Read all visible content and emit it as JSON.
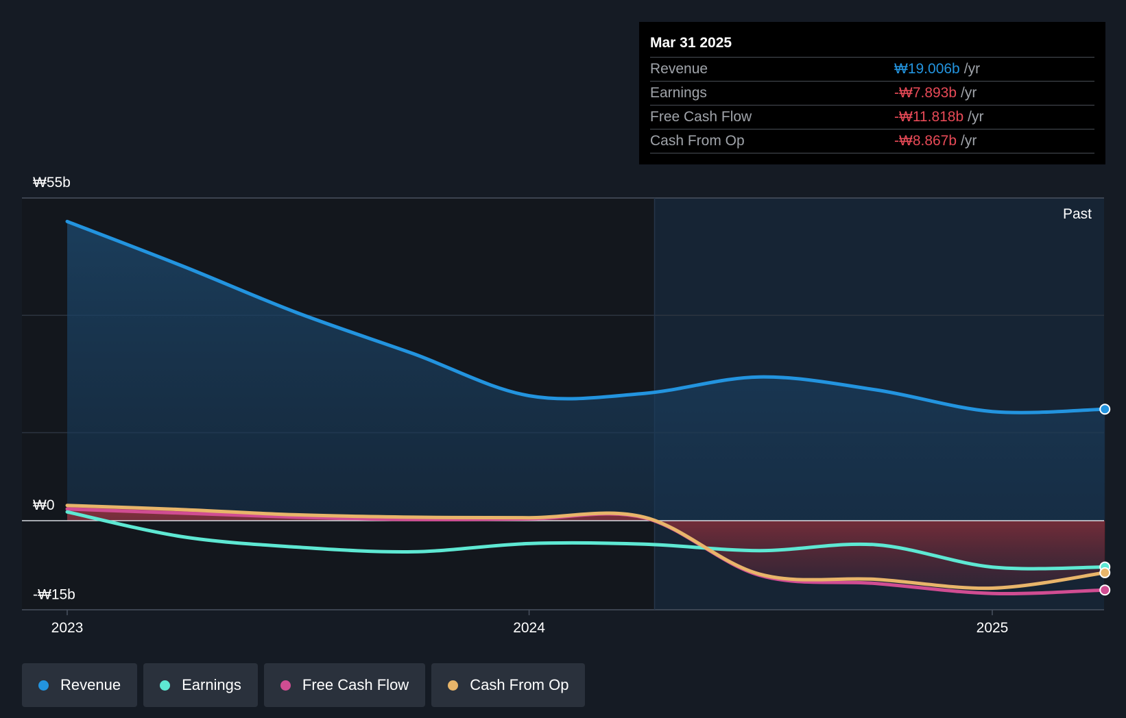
{
  "chart_data": {
    "type": "area",
    "currency_symbol": "₩",
    "x_ticks": [
      "2023",
      "2024",
      "2025"
    ],
    "y_ticks": [
      "₩55b",
      "₩0",
      "-₩15b"
    ],
    "ylim": [
      -15,
      55
    ],
    "region_label": "Past",
    "series": [
      {
        "name": "Revenue",
        "color": "#2394df",
        "points": [
          [
            "2023-01-01",
            51
          ],
          [
            "2023-04-01",
            43.5
          ],
          [
            "2023-07-01",
            35.5
          ],
          [
            "2023-10-01",
            28.5
          ],
          [
            "2024-01-01",
            21.3
          ],
          [
            "2024-04-01",
            21.7
          ],
          [
            "2024-07-01",
            24.5
          ],
          [
            "2024-10-01",
            22.3
          ],
          [
            "2025-01-01",
            18.6
          ],
          [
            "2025-03-31",
            19.006
          ]
        ]
      },
      {
        "name": "Earnings",
        "color": "#5ee8d3",
        "points": [
          [
            "2023-01-01",
            1.5
          ],
          [
            "2023-04-01",
            -2.7
          ],
          [
            "2023-07-01",
            -4.5
          ],
          [
            "2023-10-01",
            -5.3
          ],
          [
            "2024-01-01",
            -3.9
          ],
          [
            "2024-04-01",
            -4
          ],
          [
            "2024-07-01",
            -5.1
          ],
          [
            "2024-10-01",
            -4.1
          ],
          [
            "2025-01-01",
            -7.9
          ],
          [
            "2025-03-31",
            -7.893
          ]
        ]
      },
      {
        "name": "Free Cash Flow",
        "color": "#d04d92",
        "points": [
          [
            "2023-01-01",
            2
          ],
          [
            "2023-04-01",
            1.3
          ],
          [
            "2023-07-01",
            0.6
          ],
          [
            "2023-10-01",
            0.2
          ],
          [
            "2024-01-01",
            0.3
          ],
          [
            "2024-04-01",
            0.5
          ],
          [
            "2024-07-01",
            -9.3
          ],
          [
            "2024-10-01",
            -10.7
          ],
          [
            "2025-01-01",
            -12.4
          ],
          [
            "2025-03-31",
            -11.818
          ]
        ]
      },
      {
        "name": "Cash From Op",
        "color": "#e8b56a",
        "points": [
          [
            "2023-01-01",
            2.6
          ],
          [
            "2023-04-01",
            1.9
          ],
          [
            "2023-07-01",
            1
          ],
          [
            "2023-10-01",
            0.6
          ],
          [
            "2024-01-01",
            0.5
          ],
          [
            "2024-04-01",
            0.6
          ],
          [
            "2024-07-01",
            -9.1
          ],
          [
            "2024-10-01",
            -10
          ],
          [
            "2025-01-01",
            -11.5
          ],
          [
            "2025-03-31",
            -8.867
          ]
        ]
      }
    ]
  },
  "tooltip": {
    "date": "Mar 31 2025",
    "rows": [
      {
        "label": "Revenue",
        "value": "₩19.006b",
        "unit": "/yr",
        "color": "#2394df"
      },
      {
        "label": "Earnings",
        "value": "-₩7.893b",
        "unit": "/yr",
        "color": "#e84a57"
      },
      {
        "label": "Free Cash Flow",
        "value": "-₩11.818b",
        "unit": "/yr",
        "color": "#e84a57"
      },
      {
        "label": "Cash From Op",
        "value": "-₩8.867b",
        "unit": "/yr",
        "color": "#e84a57"
      }
    ]
  },
  "legend": [
    {
      "label": "Revenue",
      "color": "#2394df"
    },
    {
      "label": "Earnings",
      "color": "#5ee8d3"
    },
    {
      "label": "Free Cash Flow",
      "color": "#d04d92"
    },
    {
      "label": "Cash From Op",
      "color": "#e8b56a"
    }
  ]
}
